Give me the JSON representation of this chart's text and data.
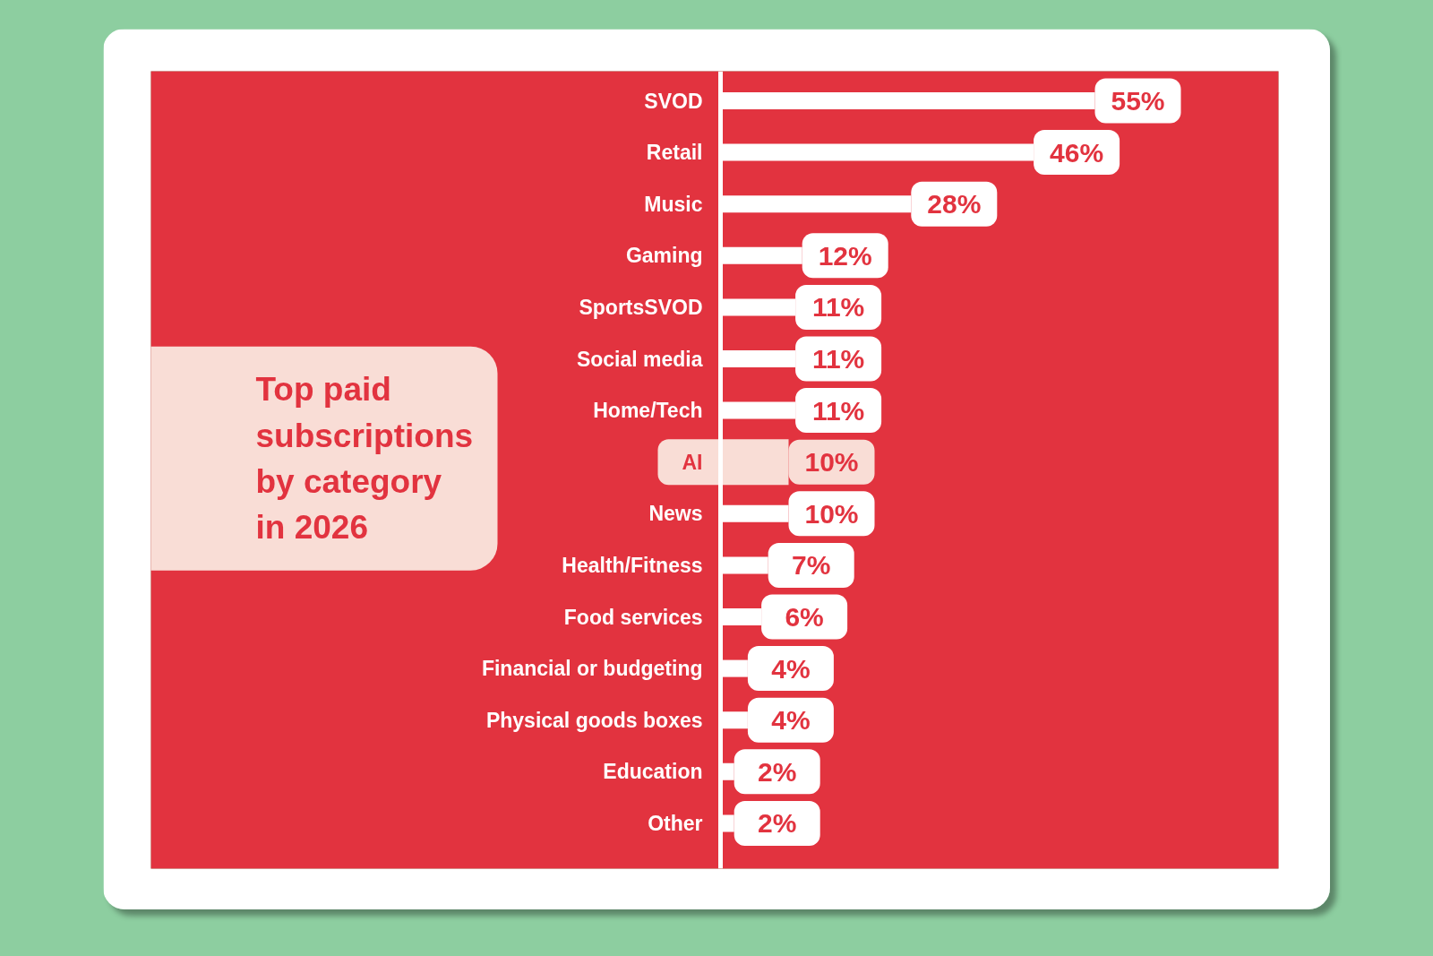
{
  "chart_data": {
    "type": "bar",
    "orientation": "horizontal",
    "title": "Top paid subscriptions by category in 2026",
    "categories": [
      "SVOD",
      "Retail",
      "Music",
      "Gaming",
      "SportsSVOD",
      "Social media",
      "Home/Tech",
      "AI",
      "News",
      "Health/Fitness",
      "Food services",
      "Financial or budgeting",
      "Physical goods boxes",
      "Education",
      "Other"
    ],
    "values": [
      55,
      46,
      28,
      12,
      11,
      11,
      11,
      10,
      10,
      7,
      6,
      4,
      4,
      2,
      2
    ],
    "colors": [
      "#ffffff",
      "#ffffff",
      "#ffffff",
      "#ffffff",
      "#ffffff",
      "#ffffff",
      "#ffffff",
      "#f9ddd6",
      "#ffffff",
      "#ffffff",
      "#ffffff",
      "#ffffff",
      "#ffffff",
      "#ffffff",
      "#ffffff"
    ],
    "value_labels": [
      "55%",
      "46%",
      "28%",
      "12%",
      "11%",
      "11%",
      "11%",
      "10%",
      "10%",
      "7%",
      "6%",
      "4%",
      "4%",
      "2%",
      "2%"
    ]
  }
}
